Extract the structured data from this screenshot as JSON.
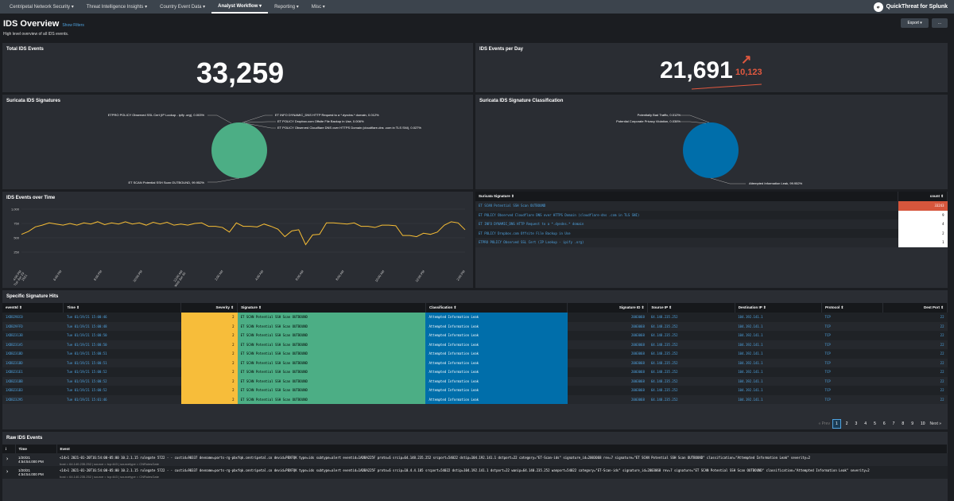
{
  "topnav": {
    "items": [
      "Centripetal Network Security ▾",
      "Threat Intelligence Insights ▾",
      "Country Event Data ▾",
      "Analyst Workflow ▾",
      "Reporting ▾",
      "Misc ▾"
    ],
    "active": 3,
    "brand_logo": "qt",
    "brand": "QuickThreat for Splunk"
  },
  "header": {
    "title": "IDS Overview",
    "show_filters": "Show Filters",
    "subtitle": "High level overview of all IDS events.",
    "export": "Export ▾",
    "more": "..."
  },
  "total_events": {
    "title": "Total IDS Events",
    "value": "33,259"
  },
  "events_per_day": {
    "title": "IDS Events per Day",
    "value": "21,691",
    "delta": "10,123",
    "arrow": "↗"
  },
  "signatures_pie": {
    "title": "Suricata IDS Signatures",
    "labels": [
      "ETPRO POLICY Observed SSL Cert (IP Lookup - ipify .org), 0.003%",
      "ET INFO DYNAMIC_DNS HTTP Request to a *.dyndns.* domain, 0.012%",
      "ET POLICY Dropbox.com Offsite File Backup in Use, 0.006%",
      "ET POLICY Observed Cloudflare DNS over HTTPS Domain (cloudflare-dns .com in TLS SNI), 0.027%",
      "ET SCAN Potential SSH Scan OUTBOUND, 99.952%"
    ],
    "color": "#4cae85"
  },
  "classification_pie": {
    "title": "Suricata IDS Signature Classification",
    "labels": [
      "Potentially Bad Traffic, 0.012%",
      "Potential Corporate Privacy Violation, 0.036%",
      "Attempted Information Leak, 99.952%"
    ],
    "color": "#006eaa"
  },
  "events_over_time": {
    "title": "IDS Events over Time",
    "yticks": [
      "1,000",
      "750",
      "500",
      "250"
    ],
    "xticks": [
      "4:00 PM\nTue Jun 29\n2021",
      "6:00 PM",
      "8:00 PM",
      "10:00 PM",
      "12:00 AM\nWed Jun 30",
      "2:00 AM",
      "4:00 AM",
      "6:00 AM",
      "8:00 AM",
      "10:00 AM",
      "12:00 PM",
      "2:00 PM"
    ]
  },
  "chart_data": {
    "type": "line",
    "title": "IDS Events over Time",
    "ylim": [
      0,
      1000
    ],
    "grid": true,
    "values": [
      560,
      610,
      690,
      720,
      760,
      740,
      720,
      750,
      720,
      760,
      740,
      780,
      730,
      760,
      740,
      780,
      740,
      760,
      720,
      770,
      740,
      770,
      720,
      740,
      720,
      750,
      760,
      700,
      700,
      680,
      600,
      760,
      700,
      700,
      690,
      740,
      700,
      650,
      520,
      620,
      640,
      380,
      550,
      560,
      760,
      760,
      750,
      740,
      760,
      700,
      700,
      680,
      720,
      720,
      710,
      540,
      540,
      520,
      580,
      560,
      600,
      720,
      780,
      760,
      640
    ]
  },
  "sig_table": {
    "col1": "Suricata Signature ⇕",
    "col2": "count ⇕",
    "rows": [
      {
        "sig": "ET SCAN Potential SSH Scan OUTBOUND",
        "count": "33243"
      },
      {
        "sig": "ET POLICY Observed Cloudflare DNS over HTTPS Domain (cloudflare-dns .com in TLS SNI)",
        "count": "9"
      },
      {
        "sig": "ET INFO DYNAMIC_DNS HTTP Request to a *.dyndns.* domain",
        "count": "4"
      },
      {
        "sig": "ET POLICY Dropbox.com Offsite File Backup in Use",
        "count": "2"
      },
      {
        "sig": "ETPRO POLICY Observed SSL Cert (IP Lookup - ipify .org)",
        "count": "1"
      }
    ]
  },
  "hits": {
    "title": "Specific Signature Hits",
    "headers": [
      "eventId ⇕",
      "Time ⇕",
      "Severity ⇕",
      "Signature ⇕",
      "Classification ⇕",
      "Signature ID ⇕",
      "Source IP ⇕",
      "Destination IP ⇕",
      "Protocol ⇕",
      "Dest Port ⇕"
    ],
    "rows": [
      [
        "1XDB29EC0",
        "Tue 01/19/21 15:00:46",
        "2",
        "ET SCAN Potential SSH Scan OUTBOUND",
        "Attempted Information Leak",
        "2003068",
        "64.148.235.252",
        "104.192.141.1",
        "TCP",
        "22"
      ],
      [
        "1XDB29FFD",
        "Tue 01/19/21 15:00:48",
        "2",
        "ET SCAN Potential SSH Scan OUTBOUND",
        "Attempted Information Leak",
        "2003068",
        "64.148.235.252",
        "104.192.141.1",
        "TCP",
        "22"
      ],
      [
        "1XDB2313B",
        "Tue 01/19/21 15:00:50",
        "2",
        "ET SCAN Potential SSH Scan OUTBOUND",
        "Attempted Information Leak",
        "2003068",
        "64.148.235.252",
        "104.192.141.1",
        "TCP",
        "22"
      ],
      [
        "1XDB231A5",
        "Tue 01/19/21 15:00:50",
        "2",
        "ET SCAN Potential SSH Scan OUTBOUND",
        "Attempted Information Leak",
        "2003068",
        "64.148.235.252",
        "104.192.141.1",
        "TCP",
        "22"
      ],
      [
        "1XDB231BD",
        "Tue 01/19/21 15:00:51",
        "2",
        "ET SCAN Potential SSH Scan OUTBOUND",
        "Attempted Information Leak",
        "2003068",
        "64.148.235.252",
        "104.192.141.1",
        "TCP",
        "22"
      ],
      [
        "1XDB231BD",
        "Tue 01/19/21 15:00:51",
        "2",
        "ET SCAN Potential SSH Scan OUTBOUND",
        "Attempted Information Leak",
        "2003068",
        "64.148.235.252",
        "104.192.141.1",
        "TCP",
        "22"
      ],
      [
        "1XDB231E1",
        "Tue 01/19/21 15:00:52",
        "2",
        "ET SCAN Potential SSH Scan OUTBOUND",
        "Attempted Information Leak",
        "2003068",
        "64.148.235.252",
        "104.192.141.1",
        "TCP",
        "22"
      ],
      [
        "1XDB231BB",
        "Tue 01/19/21 15:00:52",
        "2",
        "ET SCAN Potential SSH Scan OUTBOUND",
        "Attempted Information Leak",
        "2003068",
        "64.148.235.252",
        "104.192.141.1",
        "TCP",
        "22"
      ],
      [
        "1XDB231B3",
        "Tue 01/19/21 15:00:52",
        "2",
        "ET SCAN Potential SSH Scan OUTBOUND",
        "Attempted Information Leak",
        "2003068",
        "64.148.235.252",
        "104.192.141.1",
        "TCP",
        "22"
      ],
      [
        "1XDB23295",
        "Tue 01/19/21 15:01:46",
        "2",
        "ET SCAN Potential SSH Scan OUTBOUND",
        "Attempted Information Leak",
        "2003068",
        "64.148.235.252",
        "104.192.141.1",
        "TCP",
        "22"
      ]
    ],
    "pager": {
      "prev": "« Prev",
      "pages": [
        "1",
        "2",
        "3",
        "4",
        "5",
        "6",
        "7",
        "8",
        "9",
        "10"
      ],
      "next": "Next »"
    }
  },
  "raw": {
    "title": "Raw IDS Events",
    "headers": [
      "i",
      "Time",
      "Event"
    ],
    "rows": [
      {
        "date": "1/20/21",
        "time": "4:54:54.000 PM",
        "event": "<14>1 2021-01-20T16:54:00-05:00 10.2.1.15 rulegate 5722 - - custid=90337 devname=ports-rg-pbxfqk.centripetal.co devid=PBXFQK type=ids subtype=alert eventid=1ADBA225F proto=6 srcip=64.148.235.252 srcport=54022 dstip=104.192.141.1 dstport=22 category=\"ET-Scan-ids\" signature_id=2003068 rev=7 signature=\"ET SCAN Potential SSH Scan OUTBOUND\" classification=\"Attempted Information Leak\" severity=2",
        "meta": "host = 64.140.235.252   |   source = tcp:443   |   sourcetype = CNRulesGate"
      },
      {
        "date": "1/20/21",
        "time": "4:54:54.000 PM",
        "event": "<14>1 2021-01-20T16:54:00-05:00 10.2.1.15 rulegate 5722 - - custid=90337 devname=ports-rg-pbxfqk.centripetal.co devid=PBXFQK type=ids subtype=alert eventid=1ADBA225F proto=6 srcip=10.4.4.105 srcport=54022 dstip=104.192.141.1 dstport=22 wanip=64.140.235.252 wanport=54022 category=\"ET-Scan-ids\" signature_id=2003068 rev=7 signature=\"ET SCAN Potential SSH Scan OUTBOUND\" classification=\"Attempted Information Leak\" severity=2",
        "meta": "host = 64.140.235.252   |   source = tcp:443   |   sourcetype = CNRulesGate"
      }
    ]
  },
  "colors": {
    "severity": "#f7bd3a",
    "signature": "#4cae85",
    "classification": "#006eaa",
    "topcount": "#d6563c"
  }
}
